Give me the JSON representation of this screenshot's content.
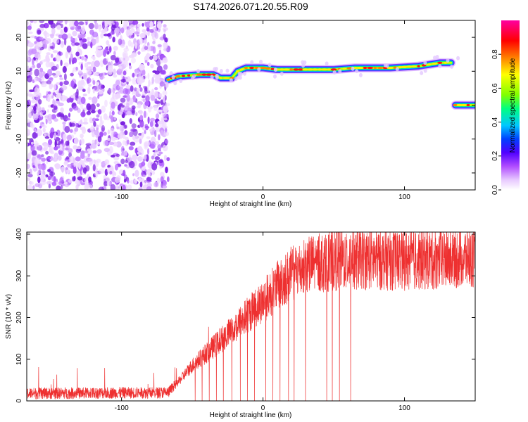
{
  "figure": {
    "title": "S174.2026.071.20.55.R09"
  },
  "chart_data": [
    {
      "type": "heatmap",
      "title": "",
      "xlabel": "Height of straight line (km)",
      "ylabel": "Frequency (Hz)",
      "xlim": [
        -167,
        150
      ],
      "ylim": [
        -25,
        25
      ],
      "x_ticks": [
        -100,
        0,
        100
      ],
      "y_ticks": [
        -20,
        -10,
        0,
        10,
        20
      ],
      "colorbar": {
        "label": "Normalized spectral amplitude",
        "range": [
          0,
          1
        ],
        "ticks": [
          "0.0",
          "0.2",
          "0.4",
          "0.6",
          "0.8"
        ],
        "tick_values": [
          0.0,
          0.2,
          0.4,
          0.6,
          0.8
        ],
        "colors": [
          "#ffffff",
          "#e7c8ff",
          "#b04cff",
          "#5000ff",
          "#0040ff",
          "#00c8ff",
          "#00ff80",
          "#80ff00",
          "#ffff00",
          "#ff8000",
          "#ff0000",
          "#ff00a0"
        ]
      },
      "noise_region": {
        "x_from": -167,
        "x_to": -67,
        "freq_from": -25,
        "freq_to": 25,
        "amplitude": 0.1
      },
      "ridge": [
        {
          "x": -67,
          "freq": 7.5
        },
        {
          "x": -60,
          "freq": 8.5
        },
        {
          "x": -45,
          "freq": 9.0
        },
        {
          "x": -35,
          "freq": 9.0
        },
        {
          "x": -30,
          "freq": 8.0
        },
        {
          "x": -22,
          "freq": 8.0
        },
        {
          "x": -18,
          "freq": 10.0
        },
        {
          "x": -12,
          "freq": 11.0
        },
        {
          "x": 0,
          "freq": 11.0
        },
        {
          "x": 10,
          "freq": 10.5
        },
        {
          "x": 30,
          "freq": 10.5
        },
        {
          "x": 50,
          "freq": 10.5
        },
        {
          "x": 65,
          "freq": 11.0
        },
        {
          "x": 90,
          "freq": 11.0
        },
        {
          "x": 110,
          "freq": 11.5
        },
        {
          "x": 125,
          "freq": 12.5
        },
        {
          "x": 133,
          "freq": 12.5
        }
      ],
      "second_ridge": [
        {
          "x": 136,
          "freq": 0.0
        },
        {
          "x": 145,
          "freq": 0.0
        },
        {
          "x": 150,
          "freq": 0.0
        }
      ]
    },
    {
      "type": "line",
      "title": "",
      "xlabel": "Height of straight line (km)",
      "ylabel": "SNR (10 * v/v)",
      "xlim": [
        -167,
        150
      ],
      "ylim": [
        0,
        405
      ],
      "x_ticks": [
        -100,
        0,
        100
      ],
      "y_ticks": [
        0,
        100,
        200,
        300,
        400
      ],
      "color": "#ee3030",
      "series": [
        {
          "trend": [
            {
              "x": -167,
              "y": 18
            },
            {
              "x": -67,
              "y": 20
            },
            {
              "x": -60,
              "y": 45
            },
            {
              "x": -50,
              "y": 85
            },
            {
              "x": -40,
              "y": 115
            },
            {
              "x": -30,
              "y": 145
            },
            {
              "x": -20,
              "y": 175
            },
            {
              "x": -10,
              "y": 210
            },
            {
              "x": 0,
              "y": 240
            },
            {
              "x": 10,
              "y": 275
            },
            {
              "x": 20,
              "y": 305
            },
            {
              "x": 30,
              "y": 325
            },
            {
              "x": 45,
              "y": 335
            },
            {
              "x": 60,
              "y": 340
            },
            {
              "x": 80,
              "y": 340
            },
            {
              "x": 100,
              "y": 338
            },
            {
              "x": 120,
              "y": 340
            },
            {
              "x": 150,
              "y": 345
            }
          ],
          "dropouts": [
            -48,
            -43,
            -38,
            -33,
            -28,
            -22,
            -16,
            -11,
            -6,
            2,
            7,
            12,
            18,
            22,
            30,
            45,
            49,
            54,
            62
          ]
        }
      ]
    }
  ]
}
